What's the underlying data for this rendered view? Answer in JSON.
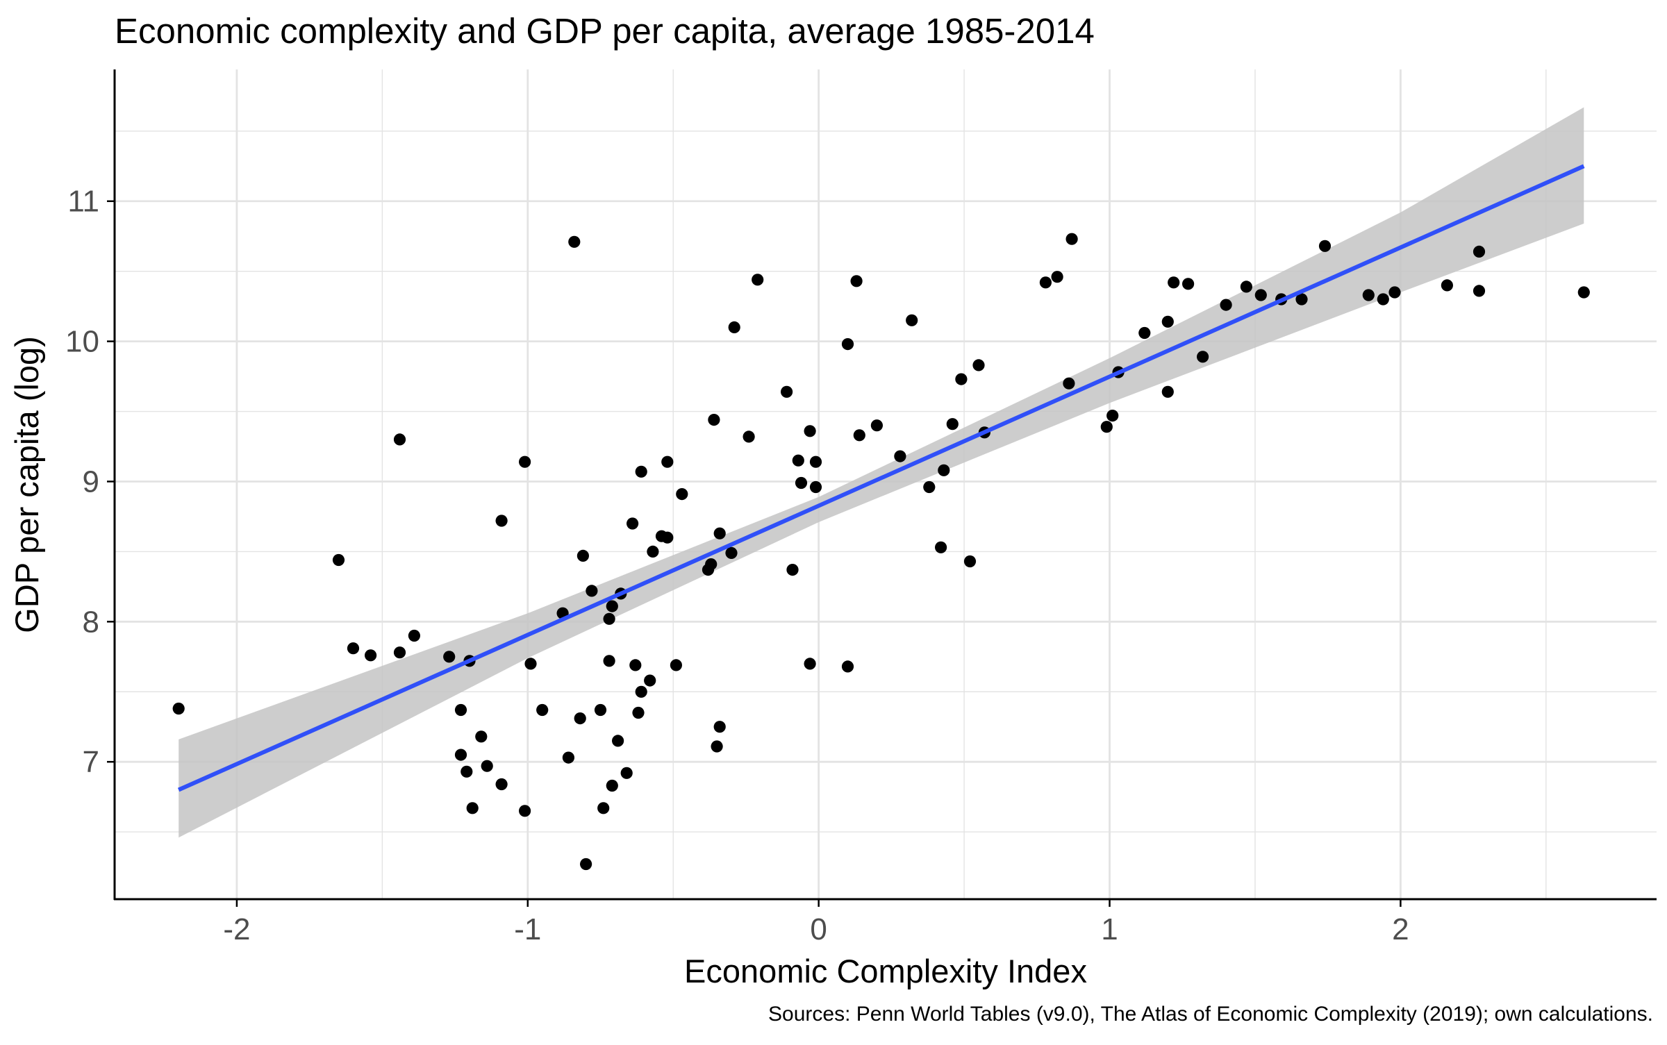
{
  "chart_data": {
    "type": "scatter",
    "title": "Economic complexity and GDP per capita, average 1985-2014",
    "xlabel": "Economic Complexity Index",
    "ylabel": "GDP per capita (log)",
    "caption": "Sources: Penn World Tables (v9.0), The Atlas of Economic Complexity (2019); own calculations.",
    "xlim": [
      -2.42,
      2.88
    ],
    "ylim": [
      6.02,
      11.94
    ],
    "x_ticks": [
      -2,
      -1,
      0,
      1,
      2
    ],
    "x_tick_labels": [
      "-2",
      "-1",
      "0",
      "1",
      "2"
    ],
    "y_ticks": [
      7,
      8,
      9,
      10,
      11
    ],
    "y_tick_labels": [
      "7",
      "8",
      "9",
      "10",
      "11"
    ],
    "grid": true,
    "colors": {
      "points": "#000000",
      "fit_line": "#3050f8",
      "confidence_band": "#c4c4c4",
      "grid": "#e3e3e3",
      "axis": "#000000",
      "text": "#000000",
      "tick_labels": "#4d4d4d"
    },
    "fit": {
      "method": "linear",
      "x_range": [
        -2.2,
        2.63
      ],
      "band": [
        {
          "x": -2.2,
          "lower": 6.46,
          "fit": 6.8,
          "upper": 7.16
        },
        {
          "x": -1.0,
          "lower": 7.74,
          "fit": 7.9,
          "upper": 8.06
        },
        {
          "x": 0.0,
          "lower": 8.71,
          "fit": 8.8,
          "upper": 8.89
        },
        {
          "x": 1.0,
          "lower": 9.56,
          "fit": 9.72,
          "upper": 9.88
        },
        {
          "x": 2.0,
          "lower": 10.35,
          "fit": 10.64,
          "upper": 10.92
        },
        {
          "x": 2.63,
          "lower": 10.84,
          "fit": 11.25,
          "upper": 11.67
        }
      ]
    },
    "points": [
      [
        -2.2,
        7.38
      ],
      [
        -1.65,
        8.44
      ],
      [
        -1.6,
        7.81
      ],
      [
        -1.54,
        7.76
      ],
      [
        -1.44,
        7.78
      ],
      [
        -1.44,
        9.3
      ],
      [
        -1.39,
        7.9
      ],
      [
        -1.27,
        7.75
      ],
      [
        -1.23,
        7.37
      ],
      [
        -1.23,
        7.05
      ],
      [
        -1.21,
        6.93
      ],
      [
        -1.2,
        7.72
      ],
      [
        -1.19,
        6.67
      ],
      [
        -1.16,
        7.18
      ],
      [
        -1.14,
        6.97
      ],
      [
        -1.09,
        6.84
      ],
      [
        -1.09,
        8.72
      ],
      [
        -1.01,
        6.65
      ],
      [
        -1.01,
        9.14
      ],
      [
        -0.99,
        7.7
      ],
      [
        -0.95,
        7.37
      ],
      [
        -0.88,
        8.06
      ],
      [
        -0.86,
        7.03
      ],
      [
        -0.84,
        10.71
      ],
      [
        -0.82,
        7.31
      ],
      [
        -0.81,
        8.47
      ],
      [
        -0.8,
        6.27
      ],
      [
        -0.78,
        8.22
      ],
      [
        -0.75,
        7.37
      ],
      [
        -0.74,
        6.67
      ],
      [
        -0.72,
        8.02
      ],
      [
        -0.72,
        7.72
      ],
      [
        -0.71,
        8.11
      ],
      [
        -0.71,
        6.83
      ],
      [
        -0.69,
        7.15
      ],
      [
        -0.68,
        8.2
      ],
      [
        -0.66,
        6.92
      ],
      [
        -0.64,
        8.7
      ],
      [
        -0.63,
        7.69
      ],
      [
        -0.62,
        7.35
      ],
      [
        -0.61,
        7.5
      ],
      [
        -0.61,
        9.07
      ],
      [
        -0.58,
        7.58
      ],
      [
        -0.57,
        8.5
      ],
      [
        -0.54,
        8.61
      ],
      [
        -0.52,
        9.14
      ],
      [
        -0.52,
        8.6
      ],
      [
        -0.49,
        7.69
      ],
      [
        -0.47,
        8.91
      ],
      [
        -0.38,
        8.37
      ],
      [
        -0.37,
        8.41
      ],
      [
        -0.36,
        9.44
      ],
      [
        -0.35,
        7.11
      ],
      [
        -0.34,
        7.25
      ],
      [
        -0.34,
        8.63
      ],
      [
        -0.3,
        8.49
      ],
      [
        -0.29,
        10.1
      ],
      [
        -0.24,
        9.32
      ],
      [
        -0.21,
        10.44
      ],
      [
        -0.11,
        9.64
      ],
      [
        -0.09,
        8.37
      ],
      [
        -0.07,
        9.15
      ],
      [
        -0.06,
        8.99
      ],
      [
        -0.03,
        9.36
      ],
      [
        -0.03,
        7.7
      ],
      [
        -0.01,
        9.14
      ],
      [
        -0.01,
        8.96
      ],
      [
        0.1,
        7.68
      ],
      [
        0.1,
        9.98
      ],
      [
        0.13,
        10.43
      ],
      [
        0.14,
        9.33
      ],
      [
        0.2,
        9.4
      ],
      [
        0.28,
        9.18
      ],
      [
        0.32,
        10.15
      ],
      [
        0.38,
        8.96
      ],
      [
        0.42,
        8.53
      ],
      [
        0.43,
        9.08
      ],
      [
        0.46,
        9.41
      ],
      [
        0.49,
        9.73
      ],
      [
        0.52,
        8.43
      ],
      [
        0.55,
        9.83
      ],
      [
        0.57,
        9.35
      ],
      [
        0.78,
        10.42
      ],
      [
        0.82,
        10.46
      ],
      [
        0.86,
        9.7
      ],
      [
        0.87,
        10.73
      ],
      [
        0.99,
        9.39
      ],
      [
        1.01,
        9.47
      ],
      [
        1.03,
        9.78
      ],
      [
        1.12,
        10.06
      ],
      [
        1.2,
        10.14
      ],
      [
        1.2,
        9.64
      ],
      [
        1.22,
        10.42
      ],
      [
        1.27,
        10.41
      ],
      [
        1.32,
        9.89
      ],
      [
        1.4,
        10.26
      ],
      [
        1.47,
        10.39
      ],
      [
        1.52,
        10.33
      ],
      [
        1.59,
        10.3
      ],
      [
        1.66,
        10.3
      ],
      [
        1.74,
        10.68
      ],
      [
        1.89,
        10.33
      ],
      [
        1.94,
        10.3
      ],
      [
        1.98,
        10.35
      ],
      [
        2.16,
        10.4
      ],
      [
        2.27,
        10.64
      ],
      [
        2.27,
        10.36
      ],
      [
        2.63,
        10.35
      ]
    ]
  }
}
